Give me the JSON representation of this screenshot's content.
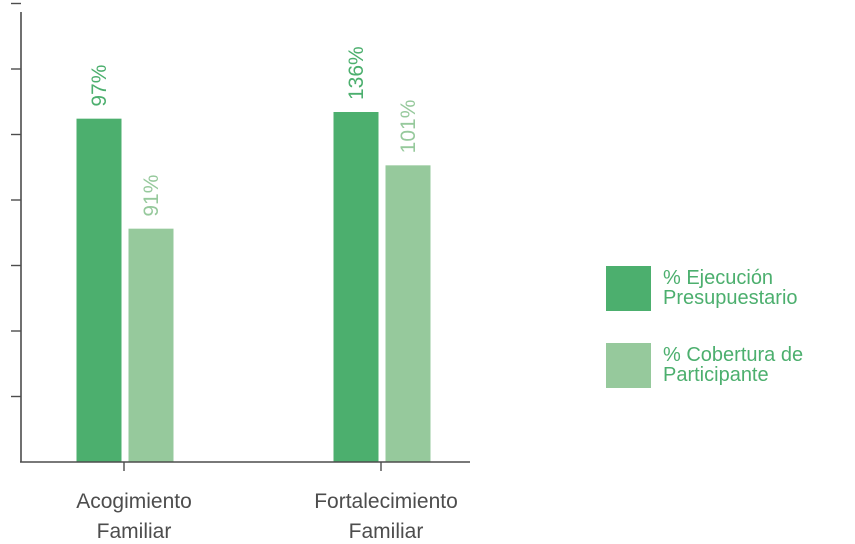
{
  "chart_data": {
    "type": "bar",
    "categories": [
      "Acogimiento Familiar",
      "Fortalecimiento Familiar"
    ],
    "category_lines": [
      [
        "Acogimiento",
        "Familiar"
      ],
      [
        "Fortalecimiento",
        "Familiar"
      ]
    ],
    "series": [
      {
        "name": "% Ejecución Presupuestario",
        "values": [
          97,
          136
        ],
        "height_values": [
          103,
          105
        ],
        "labels": [
          "97%",
          "136%"
        ],
        "color": "#4caf6e"
      },
      {
        "name": "% Cobertura de Participante",
        "values": [
          91,
          101
        ],
        "height_values": [
          70,
          89
        ],
        "labels": [
          "91%",
          "101%"
        ],
        "color": "#96c99c"
      }
    ],
    "ylim": [
      0,
      135
    ],
    "y_ticks": 7,
    "grid": false,
    "legend_position": "right"
  },
  "legend": {
    "items": [
      {
        "line1": "% Ejecución",
        "line2": "Presupuestario",
        "color": "#4caf6e"
      },
      {
        "line1": "% Cobertura de",
        "line2": "Participante",
        "color": "#96c99c"
      }
    ]
  }
}
